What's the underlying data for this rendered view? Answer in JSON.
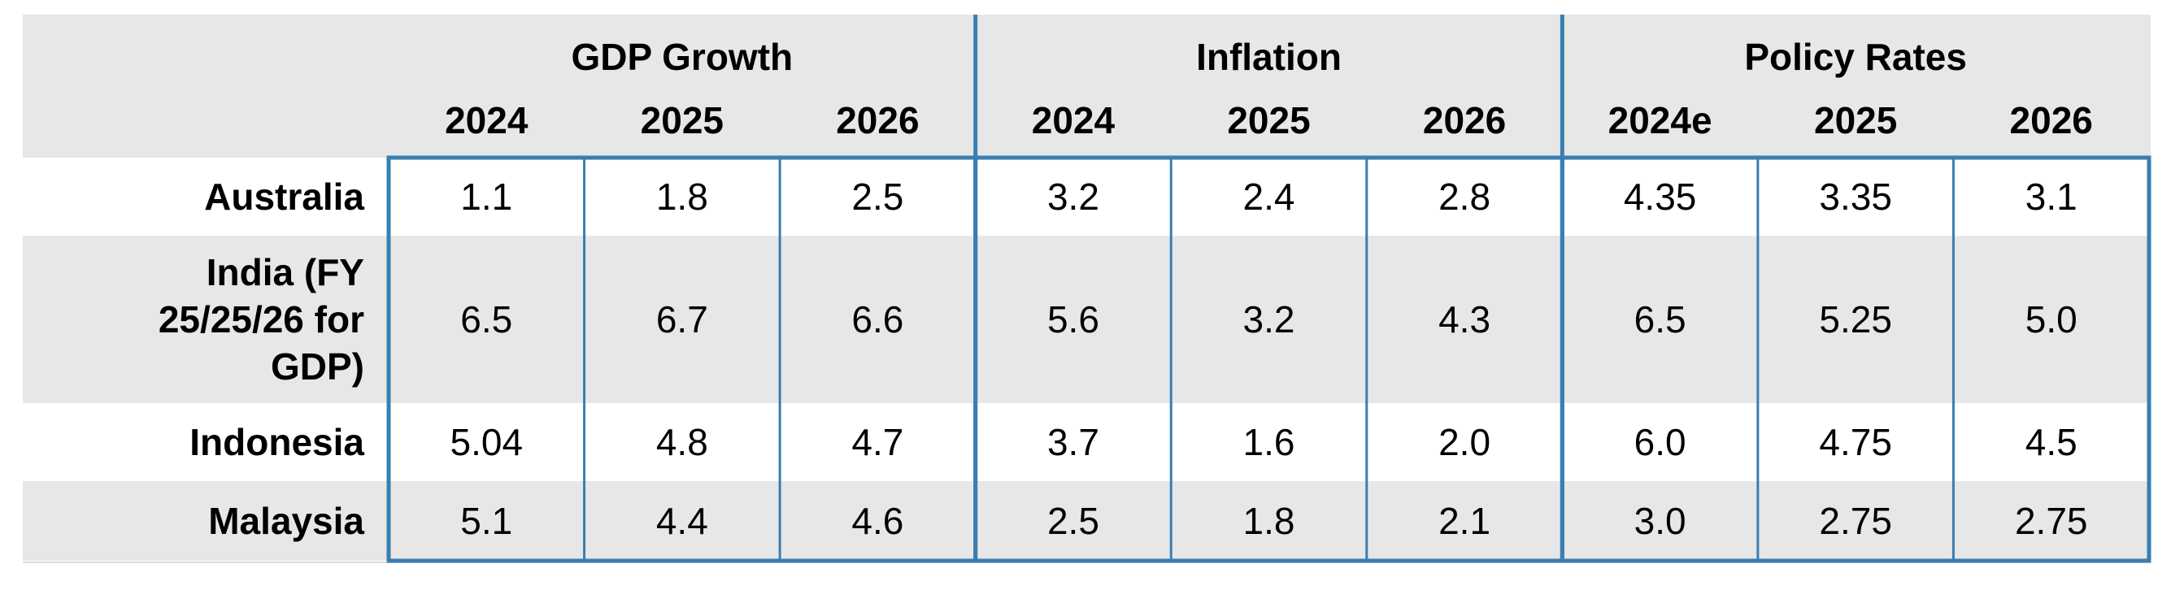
{
  "chart_data": {
    "type": "table",
    "groups": [
      {
        "label": "GDP Growth",
        "columns": [
          "2024",
          "2025",
          "2026"
        ]
      },
      {
        "label": "Inflation",
        "columns": [
          "2024",
          "2025",
          "2026"
        ]
      },
      {
        "label": "Policy Rates",
        "columns": [
          "2024e",
          "2025",
          "2026"
        ]
      }
    ],
    "rows": [
      {
        "label": [
          "Australia"
        ],
        "values": [
          "1.1",
          "1.8",
          "2.5",
          "3.2",
          "2.4",
          "2.8",
          "4.35",
          "3.35",
          "3.1"
        ]
      },
      {
        "label": [
          "India (FY",
          "25/25/26 for",
          "GDP)"
        ],
        "values": [
          "6.5",
          "6.7",
          "6.6",
          "5.6",
          "3.2",
          "4.3",
          "6.5",
          "5.25",
          "5.0"
        ]
      },
      {
        "label": [
          "Indonesia"
        ],
        "values": [
          "5.04",
          "4.8",
          "4.7",
          "3.7",
          "1.6",
          "2.0",
          "6.0",
          "4.75",
          "4.5"
        ]
      },
      {
        "label": [
          "Malaysia"
        ],
        "values": [
          "5.1",
          "4.4",
          "4.6",
          "2.5",
          "1.8",
          "2.1",
          "3.0",
          "2.75",
          "2.75"
        ]
      }
    ],
    "colors": {
      "header_bg": "#e7e7e7",
      "row_alt_bg": "#e7e7e7",
      "row_bg": "#ffffff",
      "border": "#3a7eb0"
    }
  }
}
